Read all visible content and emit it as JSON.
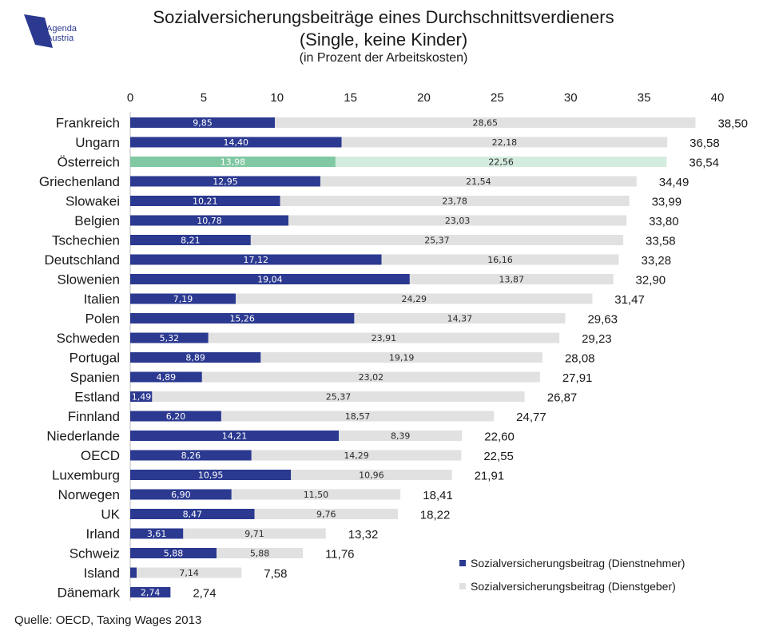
{
  "header": {
    "title_line1": "Sozialversicherungsbeiträge eines Durchschnittsverdieners",
    "title_line2": "(Single, keine Kinder)",
    "subtitle": "(in Prozent der Arbeitskosten)",
    "logo_line1": "Agenda",
    "logo_line2": "Austria"
  },
  "source": "Quelle: OECD, Taxing Wages 2013",
  "colors": {
    "employee": "#2b3990",
    "employer": "#e1e1e1",
    "highlight_employee": "#7fc8a1",
    "highlight_employer": "#d4ecdf"
  },
  "chart_data": {
    "type": "bar",
    "orientation": "horizontal",
    "stacked": true,
    "title": "Sozialversicherungsbeiträge eines Durchschnittsverdieners (Single, keine Kinder)",
    "subtitle": "(in Prozent der Arbeitskosten)",
    "xlim": [
      0,
      40
    ],
    "xticks": [
      "0",
      "5",
      "10",
      "15",
      "20",
      "25",
      "30",
      "35",
      "40"
    ],
    "highlight": "Österreich",
    "legend_position": "bottom-right",
    "categories": [
      "Frankreich",
      "Ungarn",
      "Österreich",
      "Griechenland",
      "Slowakei",
      "Belgien",
      "Tschechien",
      "Deutschland",
      "Slowenien",
      "Italien",
      "Polen",
      "Schweden",
      "Portugal",
      "Spanien",
      "Estland",
      "Finnland",
      "Niederlande",
      "OECD",
      "Luxemburg",
      "Norwegen",
      "UK",
      "Irland",
      "Schweiz",
      "Island",
      "Dänemark"
    ],
    "series": [
      {
        "name": "Sozialversicherungsbeitrag (Dienstnehmer)",
        "values": [
          9.85,
          14.4,
          13.98,
          12.95,
          10.21,
          10.78,
          8.21,
          17.12,
          19.04,
          7.19,
          15.26,
          5.32,
          8.89,
          4.89,
          1.49,
          6.2,
          14.21,
          8.26,
          10.95,
          6.9,
          8.47,
          3.61,
          5.88,
          0.44,
          2.74
        ],
        "labels": [
          "9,85",
          "14,40",
          "13,98",
          "12,95",
          "10,21",
          "10,78",
          "8,21",
          "17,12",
          "19,04",
          "7,19",
          "15,26",
          "5,32",
          "8,89",
          "4,89",
          "1,49",
          "6,20",
          "14,21",
          "8,26",
          "10,95",
          "6,90",
          "8,47",
          "3,61",
          "5,88",
          "",
          "2,74"
        ]
      },
      {
        "name": "Sozialversicherungsbeitrag (Dienstgeber)",
        "values": [
          28.65,
          22.18,
          22.56,
          21.54,
          23.78,
          23.03,
          25.37,
          16.16,
          13.87,
          24.29,
          14.37,
          23.91,
          19.19,
          23.02,
          25.37,
          18.57,
          8.39,
          14.29,
          10.96,
          11.5,
          9.76,
          9.71,
          5.88,
          7.14,
          0
        ],
        "labels": [
          "28,65",
          "22,18",
          "22,56",
          "21,54",
          "23,78",
          "23,03",
          "25,37",
          "16,16",
          "13,87",
          "24,29",
          "14,37",
          "23,91",
          "19,19",
          "23,02",
          "25,37",
          "18,57",
          "8,39",
          "14,29",
          "10,96",
          "11,50",
          "9,76",
          "9,71",
          "5,88",
          "7,14",
          ""
        ]
      }
    ],
    "totals": [
      38.5,
      36.58,
      36.54,
      34.49,
      33.99,
      33.8,
      33.58,
      33.28,
      32.9,
      31.47,
      29.63,
      29.23,
      28.08,
      27.91,
      26.87,
      24.77,
      22.6,
      22.55,
      21.91,
      18.41,
      18.22,
      13.32,
      11.76,
      7.58,
      2.74
    ],
    "total_labels": [
      "38,50",
      "36,58",
      "36,54",
      "34,49",
      "33,99",
      "33,80",
      "33,58",
      "33,28",
      "32,90",
      "31,47",
      "29,63",
      "29,23",
      "28,08",
      "27,91",
      "26,87",
      "24,77",
      "22,60",
      "22,55",
      "21,91",
      "18,41",
      "18,22",
      "13,32",
      "11,76",
      "7,58",
      "2,74"
    ]
  }
}
